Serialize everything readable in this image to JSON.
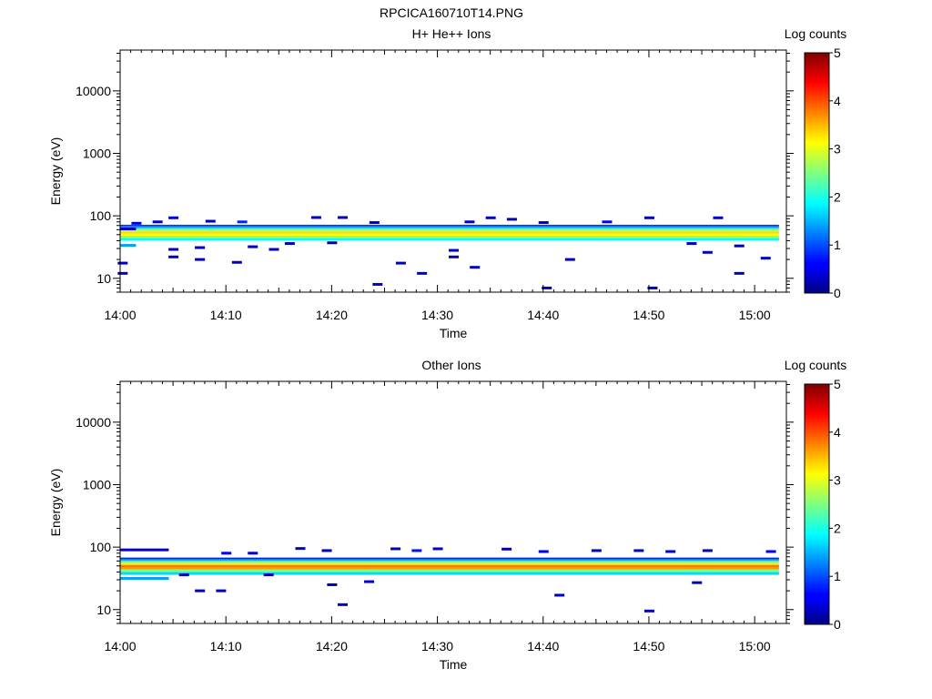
{
  "title": "RPCICA160710T14.PNG",
  "chart_data": [
    {
      "type": "heatmap",
      "title": "H+ He++ Ions",
      "xlabel": "Time",
      "ylabel": "Energy (eV)",
      "yscale": "log",
      "ylim": [
        6,
        45000
      ],
      "xlim_minutes": [
        0,
        63
      ],
      "x_ticks": [
        {
          "m": 0,
          "label": "14:00"
        },
        {
          "m": 10,
          "label": "14:10"
        },
        {
          "m": 20,
          "label": "14:20"
        },
        {
          "m": 30,
          "label": "14:30"
        },
        {
          "m": 40,
          "label": "14:40"
        },
        {
          "m": 50,
          "label": "14:50"
        },
        {
          "m": 60,
          "label": "15:00"
        }
      ],
      "y_ticks": [
        {
          "v": 10,
          "label": "10"
        },
        {
          "v": 100,
          "label": "100"
        },
        {
          "v": 1000,
          "label": "1000"
        },
        {
          "v": 10000,
          "label": "10000"
        }
      ],
      "colorbar": {
        "label": "Log counts",
        "min": 0,
        "max": 5,
        "ticks": [
          "0",
          "1",
          "2",
          "3",
          "4",
          "5"
        ]
      },
      "band": {
        "t_start": 0,
        "t_end": 62.3,
        "energy_bins": [
          {
            "e_lo": 40,
            "e_hi": 44,
            "level": 1.9
          },
          {
            "e_lo": 44,
            "e_hi": 48,
            "level": 2.6
          },
          {
            "e_lo": 48,
            "e_hi": 52,
            "level": 3.1
          },
          {
            "e_lo": 52,
            "e_hi": 56,
            "level": 3.3
          },
          {
            "e_lo": 56,
            "e_hi": 60,
            "level": 2.8
          },
          {
            "e_lo": 60,
            "e_hi": 64,
            "level": 2.1
          },
          {
            "e_lo": 64,
            "e_hi": 68,
            "level": 1.4
          },
          {
            "e_lo": 68,
            "e_hi": 72,
            "level": 0.9
          }
        ],
        "start_segment": {
          "t_end": 1.5,
          "e_lo": 32,
          "e_hi": 65
        }
      },
      "sparse_hits": [
        {
          "t": 0.2,
          "e": 12,
          "level": 0.3
        },
        {
          "t": 0.2,
          "e": 17.5,
          "level": 0.3
        },
        {
          "t": 1.5,
          "e": 76,
          "level": 0.4
        },
        {
          "t": 3.5,
          "e": 80,
          "level": 0.4
        },
        {
          "t": 5,
          "e": 93,
          "level": 0.5
        },
        {
          "t": 5,
          "e": 22,
          "level": 0.3
        },
        {
          "t": 5,
          "e": 29,
          "level": 0.3
        },
        {
          "t": 7.5,
          "e": 20,
          "level": 0.3
        },
        {
          "t": 7.5,
          "e": 31,
          "level": 0.3
        },
        {
          "t": 8.5,
          "e": 82,
          "level": 0.3
        },
        {
          "t": 11,
          "e": 18,
          "level": 0.3
        },
        {
          "t": 11.5,
          "e": 80,
          "level": 0.8
        },
        {
          "t": 12.5,
          "e": 32,
          "level": 0.3
        },
        {
          "t": 14.5,
          "e": 29,
          "level": 0.3
        },
        {
          "t": 18.5,
          "e": 94,
          "level": 0.3
        },
        {
          "t": 21,
          "e": 94,
          "level": 0.3
        },
        {
          "t": 24.3,
          "e": 8,
          "level": 0.3
        },
        {
          "t": 26.5,
          "e": 17.5,
          "level": 0.3
        },
        {
          "t": 28.5,
          "e": 12,
          "level": 0.3
        },
        {
          "t": 31.5,
          "e": 28,
          "level": 0.4
        },
        {
          "t": 31.5,
          "e": 22,
          "level": 0.3
        },
        {
          "t": 33.5,
          "e": 15,
          "level": 0.3
        },
        {
          "t": 35,
          "e": 93,
          "level": 0.3
        },
        {
          "t": 37,
          "e": 88,
          "level": 0.3
        },
        {
          "t": 40.3,
          "e": 7,
          "level": 0.3
        },
        {
          "t": 42.5,
          "e": 20,
          "level": 0.3
        },
        {
          "t": 50.3,
          "e": 7,
          "level": 0.3
        },
        {
          "t": 50,
          "e": 93,
          "level": 0.3
        },
        {
          "t": 55.5,
          "e": 26,
          "level": 0.3
        },
        {
          "t": 56.5,
          "e": 93,
          "level": 0.4
        },
        {
          "t": 58.5,
          "e": 12,
          "level": 0.3
        },
        {
          "t": 58.5,
          "e": 33,
          "level": 0.3
        },
        {
          "t": 61,
          "e": 21,
          "level": 0.3
        },
        {
          "t": 46,
          "e": 80,
          "level": 0.6
        },
        {
          "t": 40,
          "e": 78,
          "level": 0.4
        },
        {
          "t": 33,
          "e": 80,
          "level": 0.4
        },
        {
          "t": 24,
          "e": 78,
          "level": 0.4
        },
        {
          "t": 16,
          "e": 36,
          "level": 0.3
        },
        {
          "t": 20,
          "e": 37,
          "level": 0.3
        },
        {
          "t": 54,
          "e": 36,
          "level": 0.3
        }
      ]
    },
    {
      "type": "heatmap",
      "title": "Other Ions",
      "xlabel": "Time",
      "ylabel": "Energy (eV)",
      "yscale": "log",
      "ylim": [
        6,
        45000
      ],
      "xlim_minutes": [
        0,
        63
      ],
      "x_ticks": [
        {
          "m": 0,
          "label": "14:00"
        },
        {
          "m": 10,
          "label": "14:10"
        },
        {
          "m": 20,
          "label": "14:20"
        },
        {
          "m": 30,
          "label": "14:30"
        },
        {
          "m": 40,
          "label": "14:40"
        },
        {
          "m": 50,
          "label": "14:50"
        },
        {
          "m": 60,
          "label": "15:00"
        }
      ],
      "y_ticks": [
        {
          "v": 10,
          "label": "10"
        },
        {
          "v": 100,
          "label": "100"
        },
        {
          "v": 1000,
          "label": "1000"
        },
        {
          "v": 10000,
          "label": "10000"
        }
      ],
      "colorbar": {
        "label": "Log counts",
        "min": 0,
        "max": 5,
        "ticks": [
          "0",
          "1",
          "2",
          "3",
          "4",
          "5"
        ]
      },
      "band": {
        "t_start": 0,
        "t_end": 62.3,
        "energy_bins": [
          {
            "e_lo": 36,
            "e_hi": 40,
            "level": 1.7
          },
          {
            "e_lo": 40,
            "e_hi": 44,
            "level": 2.5
          },
          {
            "e_lo": 44,
            "e_hi": 48,
            "level": 3.6
          },
          {
            "e_lo": 48,
            "e_hi": 52,
            "level": 3.8
          },
          {
            "e_lo": 52,
            "e_hi": 56,
            "level": 3.2
          },
          {
            "e_lo": 56,
            "e_hi": 60,
            "level": 2.4
          },
          {
            "e_lo": 60,
            "e_hi": 64,
            "level": 1.5
          },
          {
            "e_lo": 64,
            "e_hi": 68,
            "level": 0.8
          }
        ],
        "start_segment": {
          "t_end": 4.6,
          "e_lo": 30,
          "e_hi": 95
        }
      },
      "sparse_hits": [
        {
          "t": 7.5,
          "e": 20,
          "level": 0.3
        },
        {
          "t": 9.5,
          "e": 20,
          "level": 0.3
        },
        {
          "t": 17,
          "e": 95,
          "level": 0.3
        },
        {
          "t": 19.5,
          "e": 88,
          "level": 0.3
        },
        {
          "t": 20,
          "e": 25,
          "level": 0.3
        },
        {
          "t": 21,
          "e": 12,
          "level": 0.3
        },
        {
          "t": 23.5,
          "e": 28,
          "level": 0.4
        },
        {
          "t": 26,
          "e": 94,
          "level": 0.3
        },
        {
          "t": 28,
          "e": 88,
          "level": 0.7
        },
        {
          "t": 30,
          "e": 94,
          "level": 0.4
        },
        {
          "t": 36.5,
          "e": 93,
          "level": 0.3
        },
        {
          "t": 40,
          "e": 85,
          "level": 0.6
        },
        {
          "t": 41.5,
          "e": 17,
          "level": 0.3
        },
        {
          "t": 45,
          "e": 88,
          "level": 0.3
        },
        {
          "t": 49,
          "e": 88,
          "level": 0.3
        },
        {
          "t": 50,
          "e": 9.5,
          "level": 0.3
        },
        {
          "t": 54.5,
          "e": 27,
          "level": 0.3
        },
        {
          "t": 52,
          "e": 85,
          "level": 0.4
        },
        {
          "t": 55.5,
          "e": 88,
          "level": 0.3
        },
        {
          "t": 61.5,
          "e": 85,
          "level": 0.6
        },
        {
          "t": 10,
          "e": 80,
          "level": 0.6
        },
        {
          "t": 12.5,
          "e": 80,
          "level": 0.4
        },
        {
          "t": 6,
          "e": 36,
          "level": 0.3
        },
        {
          "t": 14,
          "e": 36,
          "level": 0.3
        }
      ]
    }
  ]
}
